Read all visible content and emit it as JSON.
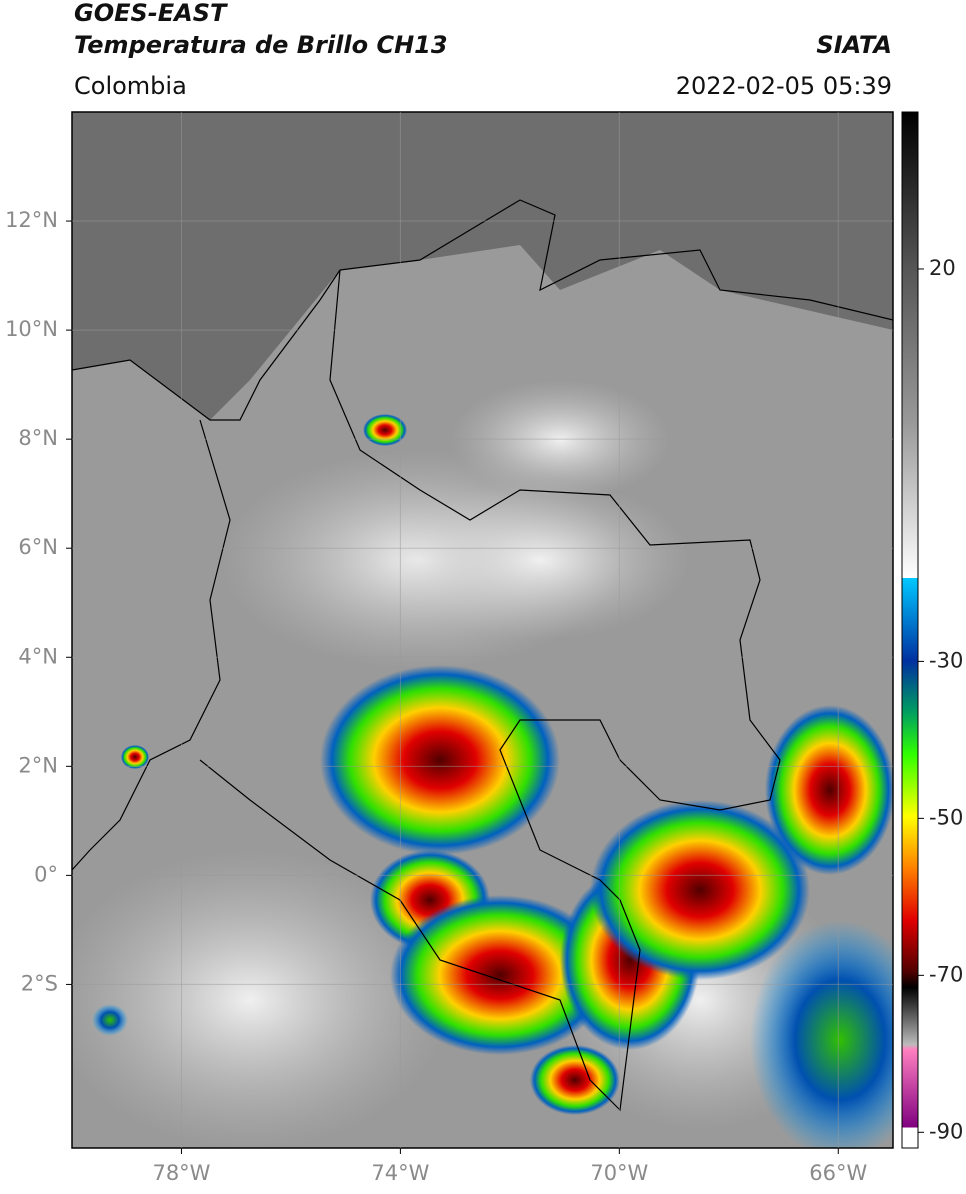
{
  "chart_data": {
    "type": "map",
    "title": "GOES-EAST",
    "subtitle": "Temperatura de Brillo CH13",
    "source": "SIATA",
    "region": "Colombia",
    "datetime": "2022-02-05 05:39",
    "xlim": [
      -80,
      -65
    ],
    "xticks": [
      {
        "value": -78,
        "label": "78°W"
      },
      {
        "value": -74,
        "label": "74°W"
      },
      {
        "value": -70,
        "label": "70°W"
      },
      {
        "value": -66,
        "label": "66°W"
      }
    ],
    "ylim": [
      -5,
      14
    ],
    "yticks": [
      {
        "value": 12,
        "label": "12°N"
      },
      {
        "value": 10,
        "label": "10°N"
      },
      {
        "value": 8,
        "label": "8°N"
      },
      {
        "value": 6,
        "label": "6°N"
      },
      {
        "value": 4,
        "label": "4°N"
      },
      {
        "value": 2,
        "label": "2°N"
      },
      {
        "value": 0,
        "label": "0°"
      },
      {
        "value": -2,
        "label": "2°S"
      }
    ],
    "grid": true,
    "colorbar": {
      "lim": [
        -92,
        40
      ],
      "ticks": [
        20,
        -30,
        -50,
        -70,
        -90
      ]
    }
  }
}
